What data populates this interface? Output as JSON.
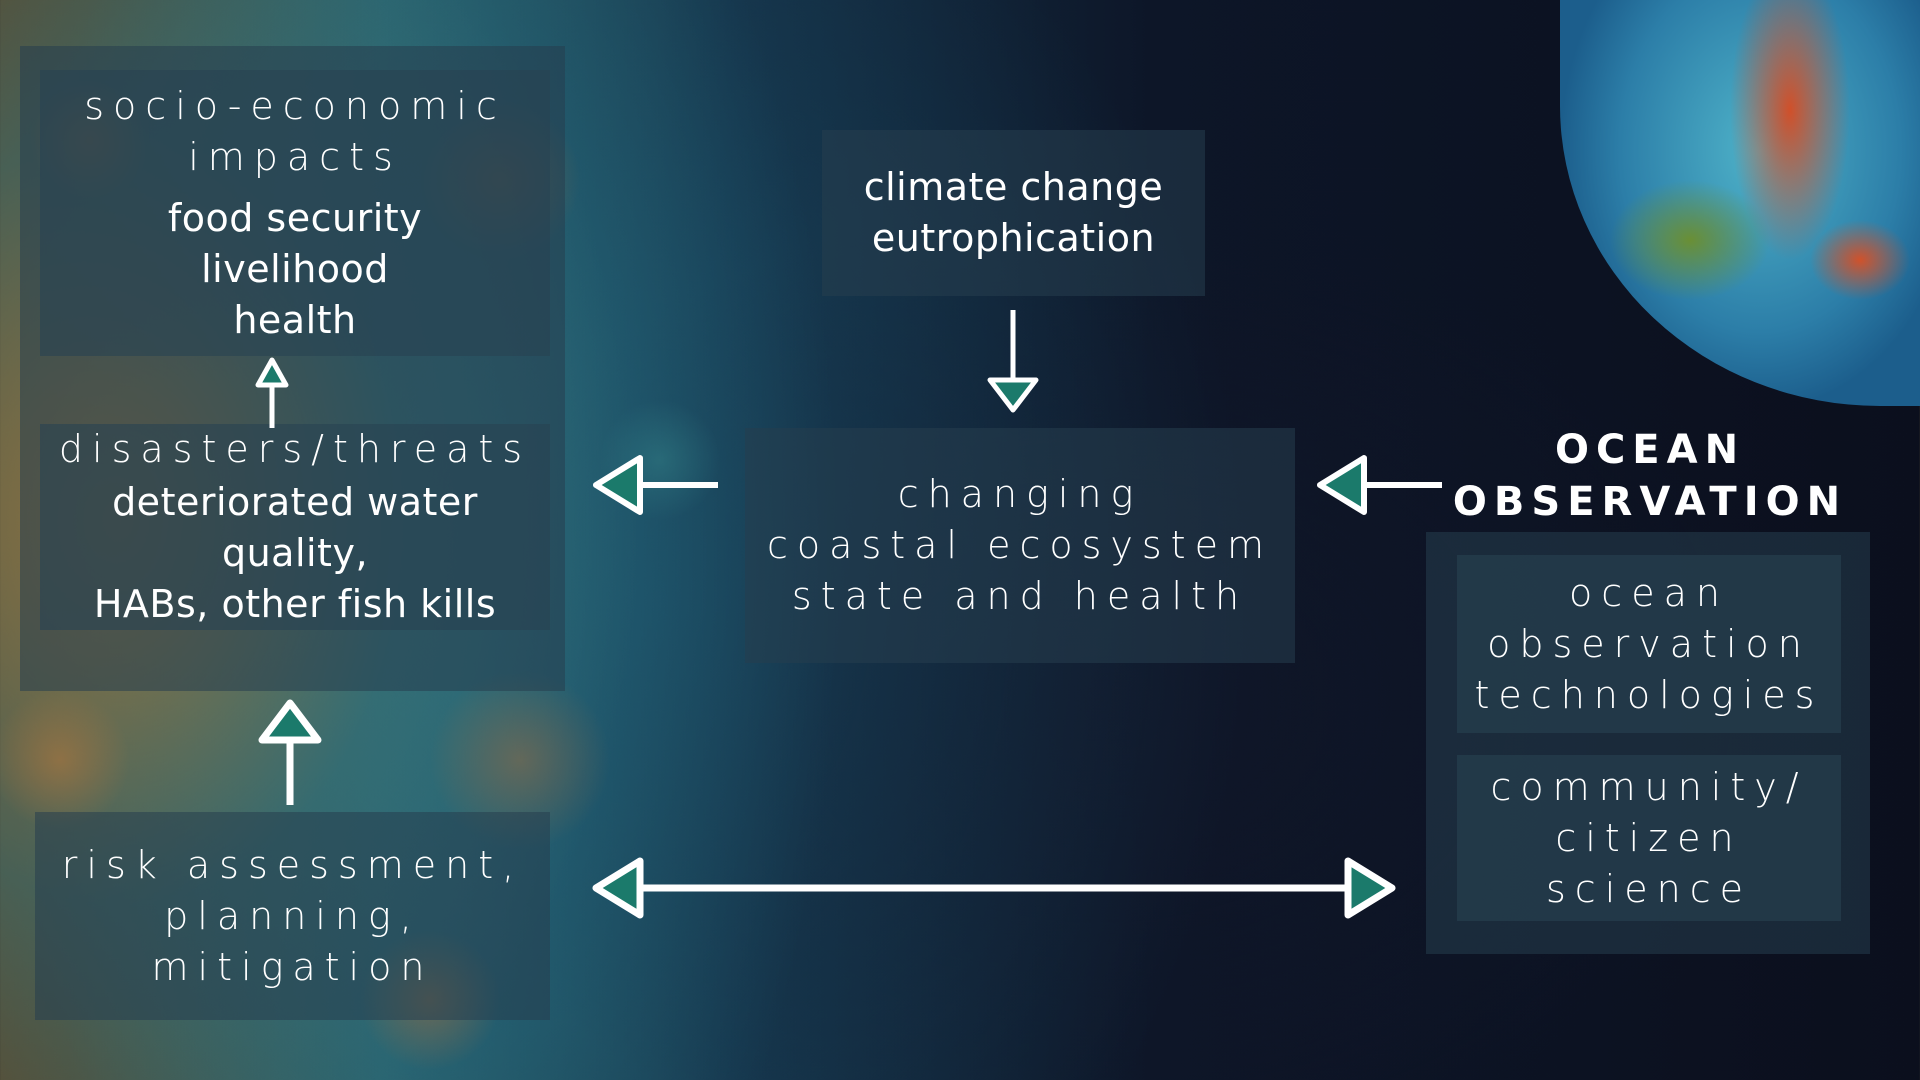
{
  "socio_economic": {
    "title_line1": "socio-economic",
    "title_line2": "impacts",
    "items": [
      "food security",
      "livelihood",
      "health"
    ]
  },
  "disasters": {
    "title": "disasters/threats",
    "detail_line1": "deteriorated water quality,",
    "detail_line2": "HABs, other fish kills"
  },
  "drivers": {
    "line1": "climate change",
    "line2": "eutrophication"
  },
  "ecosystem": {
    "line1": "changing",
    "line2": "coastal ecosystem",
    "line3": "state and health"
  },
  "ocean_observation": {
    "heading_line1": "OCEAN",
    "heading_line2": "OBSERVATION",
    "technologies": [
      "ocean",
      "observation",
      "technologies"
    ],
    "citizen": [
      "community/",
      "citizen",
      "science"
    ]
  },
  "risk": {
    "line1": "risk assessment,",
    "line2": "planning,",
    "line3": "mitigation"
  },
  "colors": {
    "arrow_fill": "#1b7a6b",
    "arrow_stroke": "#ffffff",
    "panel": "#263e4e"
  },
  "icons": [
    "arrow-up-icon",
    "arrow-down-icon",
    "arrow-left-icon",
    "double-arrow-icon"
  ]
}
